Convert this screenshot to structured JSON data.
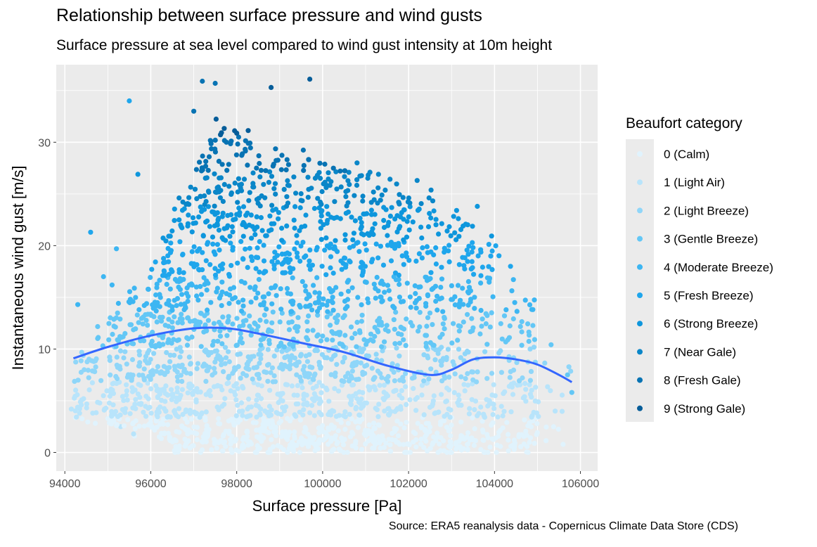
{
  "chart_data": {
    "type": "scatter",
    "title": "Relationship between surface pressure and wind gusts",
    "subtitle": "Surface pressure at sea level compared to wind gust intensity at 10m height",
    "caption": "Source: ERA5 reanalysis data - Copernicus Climate Data Store (CDS)",
    "xlabel": "Surface pressure [Pa]",
    "ylabel": "Instantaneous wind gust [m/s]",
    "xlim": [
      93800,
      106400
    ],
    "ylim": [
      -1.8,
      37.5
    ],
    "x_ticks": [
      94000,
      96000,
      98000,
      100000,
      102000,
      104000,
      106000
    ],
    "y_ticks": [
      0,
      10,
      20,
      30
    ],
    "grid": true,
    "legend": {
      "title": "Beaufort category",
      "placement": "right",
      "entries": [
        {
          "label": "0 (Calm)",
          "color": "#e0f3fd"
        },
        {
          "label": "1 (Light Air)",
          "color": "#b8e4fb"
        },
        {
          "label": "2 (Light Breeze)",
          "color": "#8fd6f9"
        },
        {
          "label": "3 (Gentle Breeze)",
          "color": "#63c7f6"
        },
        {
          "label": "4 (Moderate Breeze)",
          "color": "#3db6f2"
        },
        {
          "label": "5 (Fresh Breeze)",
          "color": "#1fa6ec"
        },
        {
          "label": "6 (Strong Breeze)",
          "color": "#0e96dc"
        },
        {
          "label": "7 (Near Gale)",
          "color": "#0a86c8"
        },
        {
          "label": "8 (Fresh Gale)",
          "color": "#0873b3"
        },
        {
          "label": "9 (Strong Gale)",
          "color": "#065d99"
        }
      ]
    },
    "series": [
      {
        "type": "smooth_line",
        "color": "#3366ff",
        "x": [
          94200,
          95000,
          96000,
          97000,
          97800,
          98500,
          99500,
          100500,
          101500,
          102500,
          103000,
          103500,
          104000,
          104500,
          105000,
          105500,
          105800
        ],
        "y": [
          9.1,
          10.2,
          11.3,
          12.0,
          12.0,
          11.5,
          10.6,
          9.7,
          8.4,
          7.5,
          8.0,
          9.0,
          9.2,
          9.0,
          8.5,
          7.5,
          6.8
        ]
      }
    ],
    "outlier_points": [
      {
        "x": 95500,
        "y": 34.0,
        "category": 5
      },
      {
        "x": 95700,
        "y": 26.9,
        "category": 6
      },
      {
        "x": 94600,
        "y": 21.3,
        "category": 5
      },
      {
        "x": 94300,
        "y": 14.3,
        "category": 4
      },
      {
        "x": 94150,
        "y": 4.2,
        "category": 1
      },
      {
        "x": 94650,
        "y": 3.8,
        "category": 1
      },
      {
        "x": 94450,
        "y": 8.0,
        "category": 2
      },
      {
        "x": 95200,
        "y": 19.7,
        "category": 4
      },
      {
        "x": 94900,
        "y": 17.0,
        "category": 4
      },
      {
        "x": 95100,
        "y": 16.2,
        "category": 4
      },
      {
        "x": 95400,
        "y": 11.5,
        "category": 3
      },
      {
        "x": 95300,
        "y": 2.5,
        "category": 1
      },
      {
        "x": 95600,
        "y": 1.8,
        "category": 1
      },
      {
        "x": 97200,
        "y": 35.9,
        "category": 8
      },
      {
        "x": 97500,
        "y": 35.7,
        "category": 8
      },
      {
        "x": 99700,
        "y": 36.1,
        "category": 9
      },
      {
        "x": 98800,
        "y": 35.3,
        "category": 9
      },
      {
        "x": 97000,
        "y": 33.0,
        "category": 8
      },
      {
        "x": 101300,
        "y": 26.9,
        "category": 7
      },
      {
        "x": 102200,
        "y": 26.3,
        "category": 7
      },
      {
        "x": 103600,
        "y": 23.8,
        "category": 6
      },
      {
        "x": 100800,
        "y": 28.0,
        "category": 7
      },
      {
        "x": 105800,
        "y": 5.8,
        "category": 3
      },
      {
        "x": 105700,
        "y": 7.5,
        "category": 3
      }
    ]
  }
}
